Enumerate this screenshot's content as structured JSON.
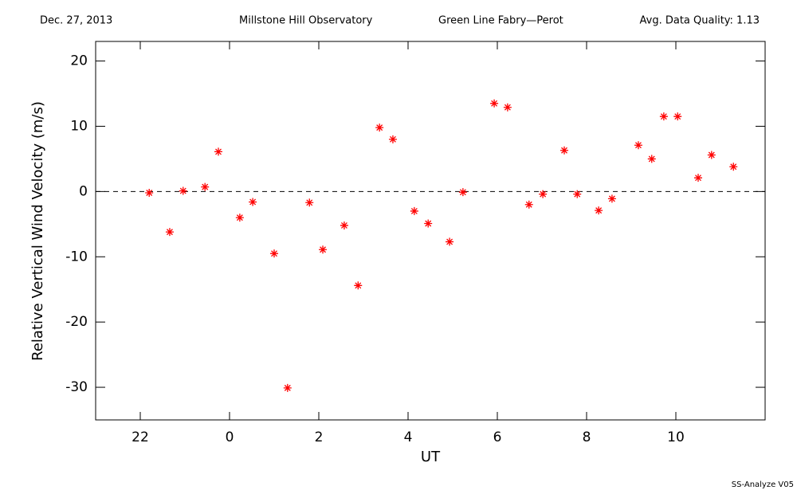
{
  "chart_data": {
    "type": "scatter",
    "header": {
      "date": "Dec. 27, 2013",
      "observatory": "Millstone Hill Observatory",
      "instrument": "Green Line Fabry—Perot",
      "quality": "Avg. Data Quality: 1.13"
    },
    "footer": "SS-Analyze V05",
    "x_label": "UT",
    "y_label": "Relative Vertical Wind Velocity (m/s)",
    "xlim": [
      21,
      36
    ],
    "ylim": [
      -35,
      23
    ],
    "xticks": [
      22,
      {
        "value": 24,
        "label": "0"
      },
      {
        "value": 26,
        "label": "2"
      },
      {
        "value": 28,
        "label": "4"
      },
      {
        "value": 30,
        "label": "6"
      },
      {
        "value": 32,
        "label": "8"
      },
      {
        "value": 34,
        "label": "10"
      }
    ],
    "yticks": [
      -30,
      -20,
      -10,
      0,
      10,
      20
    ],
    "reference_line": 0,
    "series": [
      {
        "color": "#ff0000",
        "x": [
          22.2,
          22.66,
          22.96,
          23.45,
          23.75,
          24.23,
          24.52,
          25.0,
          25.3,
          25.79,
          26.09,
          26.57,
          26.88,
          27.36,
          27.66,
          28.14,
          28.45,
          28.93,
          29.23,
          29.93,
          30.23,
          30.71,
          31.02,
          31.5,
          31.79,
          32.27,
          32.57,
          33.16,
          33.46,
          33.73,
          34.04,
          34.5,
          34.8,
          35.29
        ],
        "values": [
          -0.2,
          -6.2,
          0.1,
          0.7,
          6.1,
          -4.0,
          -1.6,
          -9.5,
          -30.1,
          -1.7,
          -8.9,
          -5.2,
          -14.4,
          9.8,
          8.0,
          -3.0,
          -4.9,
          -7.7,
          -0.1,
          13.5,
          12.9,
          -2.0,
          -0.4,
          6.3,
          -0.4,
          -2.9,
          -1.1,
          7.1,
          5.0,
          11.5,
          11.5,
          2.1,
          5.6,
          3.8
        ]
      }
    ]
  }
}
